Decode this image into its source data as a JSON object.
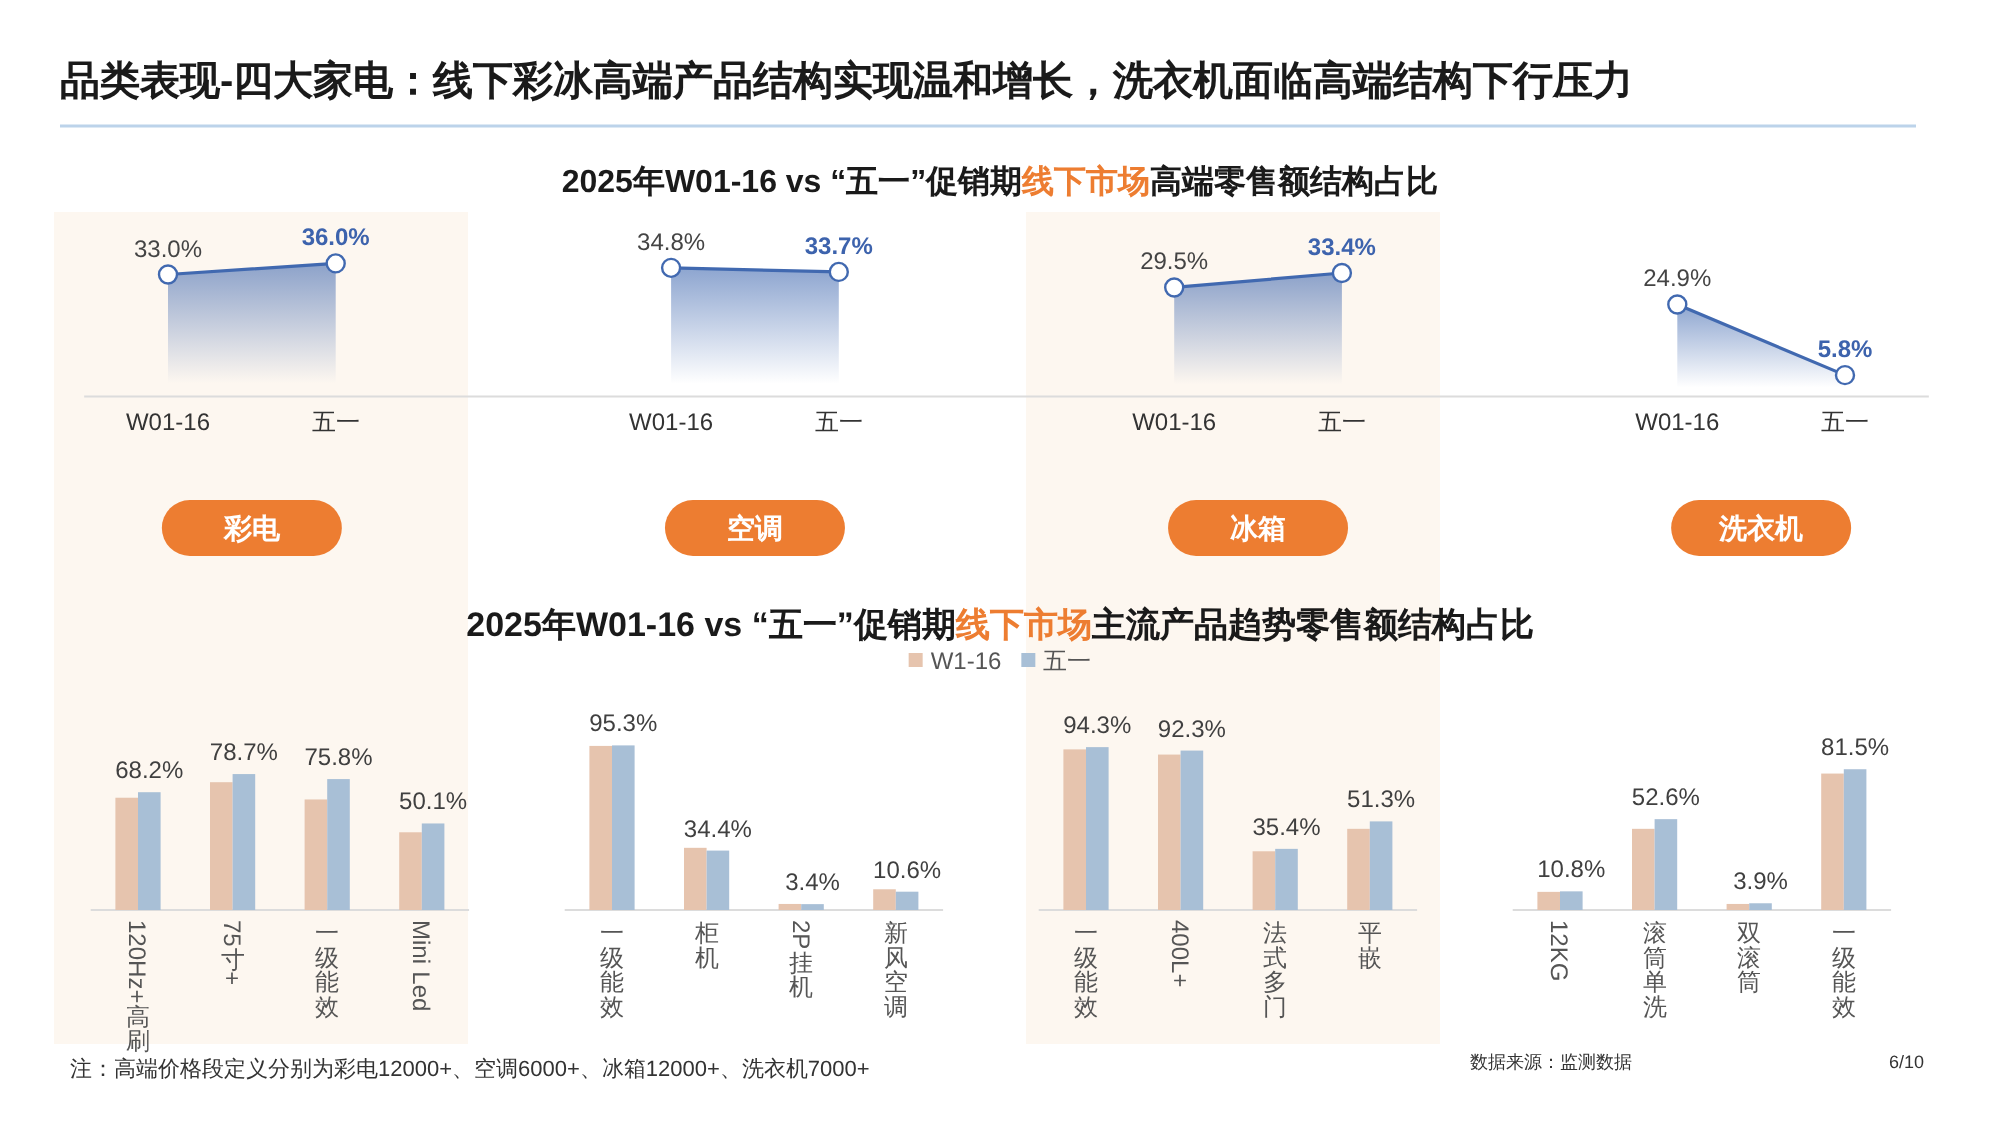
{
  "chart_data": [
    {
      "type": "other",
      "title": "品类表现-四大家电：线下彩冰高端产品结构实现温和增长，洗衣机面临高端结构下行压力",
      "annotations": [
        "2025年W01-16 vs “五一”促销期",
        "线下市场",
        "高端零售额结构占比",
        "2025年W01-16 vs “五一”促销期",
        "线下市场",
        "主流产品趋势零售额结构占比",
        "注：高端价格段定义分别为彩电12000+、空调6000+、冰箱12000+、洗衣机7000+",
        "数据来源：监测数据",
        "6/10"
      ]
    },
    {
      "type": "area",
      "categories": [
        "W01-16",
        "五一",
        null,
        "W01-16",
        "五一",
        null,
        "W01-16",
        "五一",
        null,
        "W01-16",
        "五一"
      ],
      "tick_labels": "x",
      "marker": "circle",
      "series": [
        {
          "name": "彩电",
          "color": "#4169b0",
          "values": [
            33.0,
            36.0,
            null,
            null,
            null,
            null,
            null,
            null,
            null,
            null,
            null
          ],
          "value_labels": [
            "33.0%",
            "36.0%",
            null,
            null,
            null,
            null,
            null,
            null,
            null,
            null,
            null
          ]
        },
        {
          "name": "空调",
          "color": "#4169b0",
          "values": [
            null,
            null,
            null,
            34.8,
            33.7,
            null,
            null,
            null,
            null,
            null,
            null
          ],
          "value_labels": [
            null,
            null,
            null,
            "34.8%",
            "33.7%",
            null,
            null,
            null,
            null,
            null,
            null
          ]
        },
        {
          "name": "冰箱",
          "color": "#4169b0",
          "values": [
            null,
            null,
            null,
            null,
            null,
            null,
            29.5,
            33.4,
            null,
            null,
            null
          ],
          "value_labels": [
            null,
            null,
            null,
            null,
            null,
            null,
            "29.5%",
            "33.4%",
            null,
            null,
            null
          ]
        },
        {
          "name": "洗衣机",
          "color": "#4169b0",
          "values": [
            null,
            null,
            null,
            null,
            null,
            null,
            null,
            null,
            null,
            24.9,
            5.8
          ],
          "value_labels": [
            null,
            null,
            null,
            null,
            null,
            null,
            null,
            null,
            null,
            "24.9%",
            "5.8%"
          ]
        }
      ]
    },
    {
      "type": "bar",
      "categories": [
        "120Hz+高刷",
        "75寸+",
        "一级能效",
        "Mini Led"
      ],
      "tick_labels": "x",
      "legend": "top",
      "series": [
        {
          "name": "W1-16",
          "color": "#e6c4ae",
          "values": [
            65,
            74,
            64,
            45
          ]
        },
        {
          "name": "五一",
          "color": "#a8bfd6",
          "values": [
            68.2,
            78.7,
            75.8,
            50.1
          ],
          "value_labels": [
            "68.2%",
            "78.7%",
            "75.8%",
            "50.1%"
          ]
        }
      ]
    },
    {
      "type": "bar",
      "categories": [
        "一级能效",
        "柜机",
        "2P挂机",
        "新风空调"
      ],
      "tick_labels": "x",
      "series": [
        {
          "color": "#e6c4ae",
          "values": [
            95,
            36,
            3.5,
            12
          ]
        },
        {
          "color": "#a8bfd6",
          "values": [
            95.3,
            34.4,
            3.4,
            10.6
          ],
          "value_labels": [
            "95.3%",
            "34.4%",
            "3.4%",
            "10.6%"
          ]
        }
      ]
    },
    {
      "type": "bar",
      "categories": [
        "一级能效",
        "400L+",
        "法式多门",
        "平嵌"
      ],
      "tick_labels": "x",
      "series": [
        {
          "color": "#e6c4ae",
          "values": [
            93,
            90,
            34,
            47
          ]
        },
        {
          "color": "#a8bfd6",
          "values": [
            94.3,
            92.3,
            35.4,
            51.3
          ],
          "value_labels": [
            "94.3%",
            "92.3%",
            "35.4%",
            "51.3%"
          ]
        }
      ]
    },
    {
      "type": "bar",
      "categories": [
        "12KG",
        "滚筒单洗",
        "双滚筒",
        "一级能效"
      ],
      "tick_labels": "x",
      "series": [
        {
          "color": "#e6c4ae",
          "values": [
            10.5,
            47,
            3.5,
            79
          ]
        },
        {
          "color": "#a8bfd6",
          "values": [
            10.8,
            52.6,
            3.9,
            81.5
          ],
          "value_labels": [
            "10.8%",
            "52.6%",
            "3.9%",
            "81.5%"
          ]
        }
      ]
    }
  ]
}
